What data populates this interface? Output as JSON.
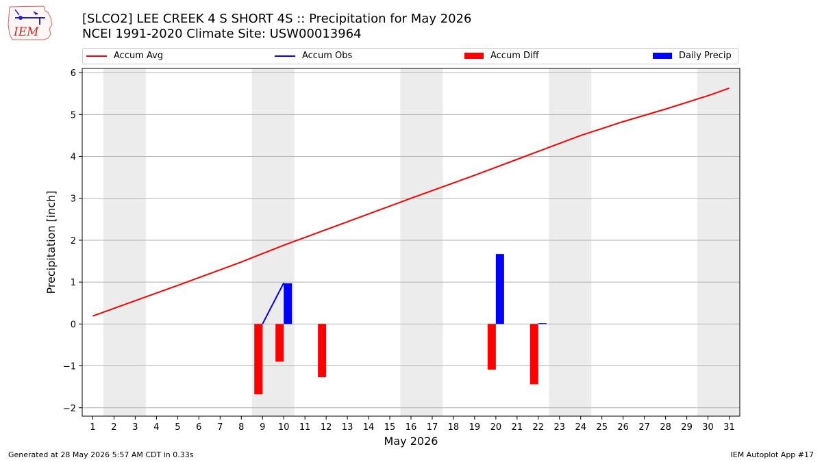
{
  "header": {
    "title_line1": "[SLCO2] LEE CREEK 4 S SHORT 4S :: Precipitation for May 2026",
    "title_line2": "NCEI 1991-2020 Climate Site: USW00013964",
    "logo_text": "IEM"
  },
  "legend": {
    "items": [
      {
        "label": "Accum Avg",
        "color": "#ff0000",
        "kind": "line"
      },
      {
        "label": "Accum Obs",
        "color": "#0000ff",
        "kind": "line"
      },
      {
        "label": "Accum Diff",
        "color": "#ff0000",
        "kind": "bar"
      },
      {
        "label": "Daily Precip",
        "color": "#0000ff",
        "kind": "bar"
      }
    ]
  },
  "footer": {
    "left": "Generated at 28 May 2026 5:57 AM CDT in 0.33s",
    "right": "IEM Autoplot App #17"
  },
  "chart_data": {
    "type": "bar",
    "title": "",
    "xlabel": "May 2026",
    "ylabel": "Precipitation [inch]",
    "xlim": [
      0.5,
      31.5
    ],
    "ylim": [
      -2.2,
      6.1
    ],
    "x_ticks": [
      1,
      2,
      3,
      4,
      5,
      6,
      7,
      8,
      9,
      10,
      11,
      12,
      13,
      14,
      15,
      16,
      17,
      18,
      19,
      20,
      21,
      22,
      23,
      24,
      25,
      26,
      27,
      28,
      29,
      30,
      31
    ],
    "y_ticks": [
      -2,
      -1,
      0,
      1,
      2,
      3,
      4,
      5,
      6
    ],
    "y_tick_labels": [
      "−2",
      "−1",
      "0",
      "1",
      "2",
      "3",
      "4",
      "5",
      "6"
    ],
    "grid": "horizontal",
    "legend_position": "top",
    "weekend_shading": [
      [
        1.5,
        3.5
      ],
      [
        8.5,
        10.5
      ],
      [
        15.5,
        17.5
      ],
      [
        22.5,
        24.5
      ],
      [
        29.5,
        31.5
      ]
    ],
    "series": [
      {
        "name": "Accum Avg",
        "kind": "line",
        "color": "#ff0000",
        "x": [
          1,
          5,
          8,
          10,
          13,
          16,
          19,
          22,
          24,
          26,
          28,
          30,
          31
        ],
        "values": [
          0.19,
          0.92,
          1.48,
          1.88,
          2.44,
          3.0,
          3.55,
          4.12,
          4.5,
          4.83,
          5.13,
          5.45,
          5.63
        ]
      },
      {
        "name": "Accum Obs",
        "kind": "line",
        "color": "#0000ff",
        "x": [
          9,
          10
        ],
        "values": [
          0.0,
          0.98
        ]
      },
      {
        "name": "Accum Diff",
        "kind": "bar",
        "color": "#ff0000",
        "x": [
          9,
          10,
          12,
          20,
          22
        ],
        "values": [
          -1.68,
          -0.9,
          -1.27,
          -1.09,
          -1.44
        ]
      },
      {
        "name": "Daily Precip",
        "kind": "bar",
        "color": "#0000ff",
        "x": [
          10,
          20,
          22
        ],
        "values": [
          0.97,
          1.67,
          0.02
        ]
      }
    ]
  }
}
